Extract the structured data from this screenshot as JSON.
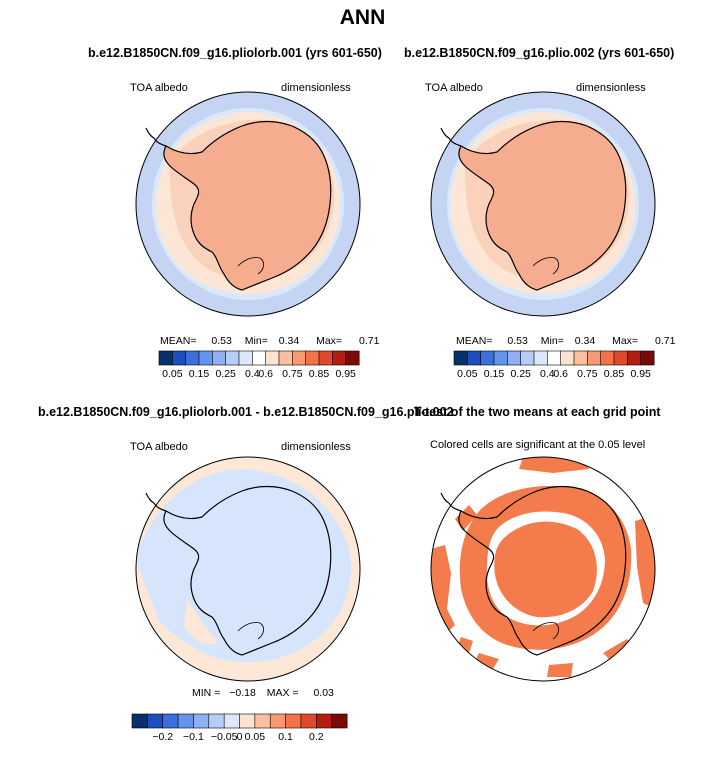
{
  "title": "ANN",
  "panels": [
    {
      "title": "b.e12.B1850CN.f09_g16.pliolorb.001 (yrs 601-650)",
      "left_label": "TOA albedo",
      "right_label": "dimensionless",
      "stats": {
        "mean_label": "MEAN=",
        "mean": "0.53",
        "min_label": "Min=",
        "min": "0.34",
        "max_label": "Max=",
        "max": "0.71"
      },
      "colorbar_labels": [
        "0.05",
        "0.15",
        "0.25",
        "0.4",
        "0.6",
        "0.75",
        "0.85",
        "0.95"
      ]
    },
    {
      "title": "b.e12.B1850CN.f09_g16.plio.002 (yrs 601-650)",
      "left_label": "TOA albedo",
      "right_label": "dimensionless",
      "stats": {
        "mean_label": "MEAN=",
        "mean": "0.53",
        "min_label": "Min=",
        "min": "0.34",
        "max_label": "Max=",
        "max": "0.71"
      },
      "colorbar_labels": [
        "0.05",
        "0.15",
        "0.25",
        "0.4",
        "0.6",
        "0.75",
        "0.85",
        "0.95"
      ]
    },
    {
      "title": "b.e12.B1850CN.f09_g16.pliolorb.001 - b.e12.B1850CN.f09_g16.plio.002",
      "left_label": "TOA albedo",
      "right_label": "dimensionless",
      "stats": {
        "min_label": "MIN =",
        "min": "−0.18",
        "max_label": "MAX =",
        "max": "0.03"
      },
      "colorbar_labels": [
        "−0.2",
        "−0.1",
        "−0.05",
        "0",
        "0.05",
        "0.1",
        "0.2"
      ]
    },
    {
      "title": "T-test of the two means at each grid point",
      "subtitle": "Colored cells are significant at the 0.05 level"
    }
  ],
  "colors": {
    "ocean_blue": "#c4d4f2",
    "ocean_light_blue": "#dbe8fa",
    "peach": "#fde6d6",
    "salmon": "#f6ac8e",
    "diff_blue": "#d6e5fb",
    "diff_peach": "#fde8d7",
    "ttest_orange": "#f47c4c",
    "colorbar_full": [
      "#08306b",
      "#1c4fbd",
      "#3b6fdd",
      "#6495ed",
      "#8fb0f3",
      "#b6cdf8",
      "#dce7fb",
      "#ffffff",
      "#fde3cf",
      "#fbbf9f",
      "#f8996f",
      "#f4714a",
      "#e04a2b",
      "#b41d12",
      "#7a0a05"
    ],
    "colorbar_diff": [
      "#08306b",
      "#1c4fbd",
      "#3b6fdd",
      "#6495ed",
      "#8fb0f3",
      "#b6cdf8",
      "#dce7fb",
      "#fde3cf",
      "#fbbf9f",
      "#f8996f",
      "#f4714a",
      "#e04a2b",
      "#b41d12",
      "#7a0a05"
    ]
  }
}
